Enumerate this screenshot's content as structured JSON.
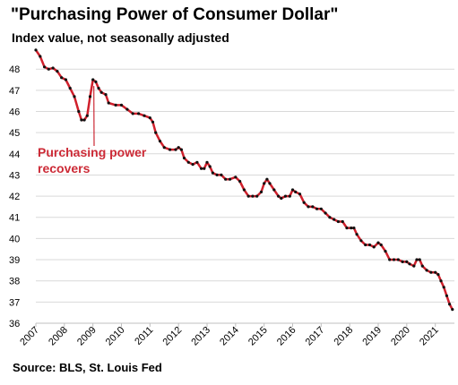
{
  "title": "\"Purchasing Power of Consumer Dollar\"",
  "subtitle": "Index value, not seasonally adjusted",
  "source": "Source: BLS, St. Louis Fed",
  "annotation": [
    "Purchasing power",
    "recovers"
  ],
  "colors": {
    "line": "#d0202c",
    "markers": "#111111",
    "grid": "#d9d9d9",
    "annotation": "#cc2a36"
  },
  "chart_data": {
    "type": "line",
    "title": "\"Purchasing Power of Consumer Dollar\"",
    "subtitle": "Index value, not seasonally adjusted",
    "ylim": [
      36,
      48.6
    ],
    "yticks": [
      36,
      37,
      38,
      39,
      40,
      41,
      42,
      43,
      44,
      45,
      46,
      47,
      48
    ],
    "xlim": [
      2007.0,
      2021.67
    ],
    "xticks": [
      "2007",
      "2008",
      "2009",
      "2010",
      "2011",
      "2012",
      "2013",
      "2014",
      "2015",
      "2016",
      "2017",
      "2018",
      "2019",
      "2020",
      "2021"
    ],
    "grid": "horizontal",
    "legend": "none",
    "series": [
      {
        "points": [
          [
            2007.0,
            48.9
          ],
          [
            2007.15,
            48.6
          ],
          [
            2007.3,
            48.1
          ],
          [
            2007.45,
            48.0
          ],
          [
            2007.6,
            48.05
          ],
          [
            2007.75,
            47.9
          ],
          [
            2007.9,
            47.6
          ],
          [
            2008.05,
            47.5
          ],
          [
            2008.2,
            47.1
          ],
          [
            2008.35,
            46.7
          ],
          [
            2008.5,
            46.0
          ],
          [
            2008.6,
            45.6
          ],
          [
            2008.7,
            45.6
          ],
          [
            2008.8,
            45.8
          ],
          [
            2008.9,
            46.7
          ],
          [
            2009.0,
            47.5
          ],
          [
            2009.1,
            47.4
          ],
          [
            2009.2,
            47.1
          ],
          [
            2009.3,
            46.9
          ],
          [
            2009.45,
            46.8
          ],
          [
            2009.55,
            46.4
          ],
          [
            2009.8,
            46.3
          ],
          [
            2010.0,
            46.3
          ],
          [
            2010.2,
            46.1
          ],
          [
            2010.4,
            45.9
          ],
          [
            2010.6,
            45.9
          ],
          [
            2010.8,
            45.8
          ],
          [
            2011.0,
            45.7
          ],
          [
            2011.1,
            45.5
          ],
          [
            2011.2,
            45.0
          ],
          [
            2011.35,
            44.6
          ],
          [
            2011.5,
            44.3
          ],
          [
            2011.7,
            44.2
          ],
          [
            2011.9,
            44.2
          ],
          [
            2012.0,
            44.3
          ],
          [
            2012.1,
            44.2
          ],
          [
            2012.2,
            43.8
          ],
          [
            2012.35,
            43.6
          ],
          [
            2012.5,
            43.5
          ],
          [
            2012.65,
            43.6
          ],
          [
            2012.8,
            43.3
          ],
          [
            2012.9,
            43.3
          ],
          [
            2013.0,
            43.6
          ],
          [
            2013.1,
            43.4
          ],
          [
            2013.2,
            43.1
          ],
          [
            2013.35,
            43.0
          ],
          [
            2013.5,
            43.0
          ],
          [
            2013.65,
            42.8
          ],
          [
            2013.8,
            42.8
          ],
          [
            2014.0,
            42.9
          ],
          [
            2014.15,
            42.7
          ],
          [
            2014.3,
            42.3
          ],
          [
            2014.45,
            42.0
          ],
          [
            2014.6,
            42.0
          ],
          [
            2014.75,
            42.0
          ],
          [
            2014.9,
            42.2
          ],
          [
            2015.0,
            42.6
          ],
          [
            2015.1,
            42.8
          ],
          [
            2015.2,
            42.6
          ],
          [
            2015.35,
            42.3
          ],
          [
            2015.5,
            42.0
          ],
          [
            2015.6,
            41.9
          ],
          [
            2015.75,
            42.0
          ],
          [
            2015.9,
            42.0
          ],
          [
            2016.0,
            42.3
          ],
          [
            2016.1,
            42.2
          ],
          [
            2016.25,
            42.1
          ],
          [
            2016.4,
            41.7
          ],
          [
            2016.55,
            41.5
          ],
          [
            2016.7,
            41.5
          ],
          [
            2016.85,
            41.4
          ],
          [
            2017.0,
            41.4
          ],
          [
            2017.15,
            41.2
          ],
          [
            2017.3,
            41.0
          ],
          [
            2017.45,
            40.9
          ],
          [
            2017.6,
            40.8
          ],
          [
            2017.75,
            40.8
          ],
          [
            2017.9,
            40.5
          ],
          [
            2018.05,
            40.5
          ],
          [
            2018.15,
            40.5
          ],
          [
            2018.25,
            40.2
          ],
          [
            2018.4,
            39.9
          ],
          [
            2018.55,
            39.7
          ],
          [
            2018.7,
            39.7
          ],
          [
            2018.85,
            39.6
          ],
          [
            2019.0,
            39.8
          ],
          [
            2019.1,
            39.7
          ],
          [
            2019.25,
            39.4
          ],
          [
            2019.4,
            39.0
          ],
          [
            2019.55,
            39.0
          ],
          [
            2019.7,
            39.0
          ],
          [
            2019.85,
            38.9
          ],
          [
            2020.0,
            38.9
          ],
          [
            2020.1,
            38.8
          ],
          [
            2020.25,
            38.7
          ],
          [
            2020.35,
            39.0
          ],
          [
            2020.45,
            39.0
          ],
          [
            2020.55,
            38.7
          ],
          [
            2020.7,
            38.5
          ],
          [
            2020.85,
            38.4
          ],
          [
            2021.0,
            38.4
          ],
          [
            2021.1,
            38.3
          ],
          [
            2021.2,
            38.0
          ],
          [
            2021.3,
            37.7
          ],
          [
            2021.4,
            37.3
          ],
          [
            2021.5,
            36.9
          ],
          [
            2021.6,
            36.65
          ]
        ]
      }
    ]
  }
}
